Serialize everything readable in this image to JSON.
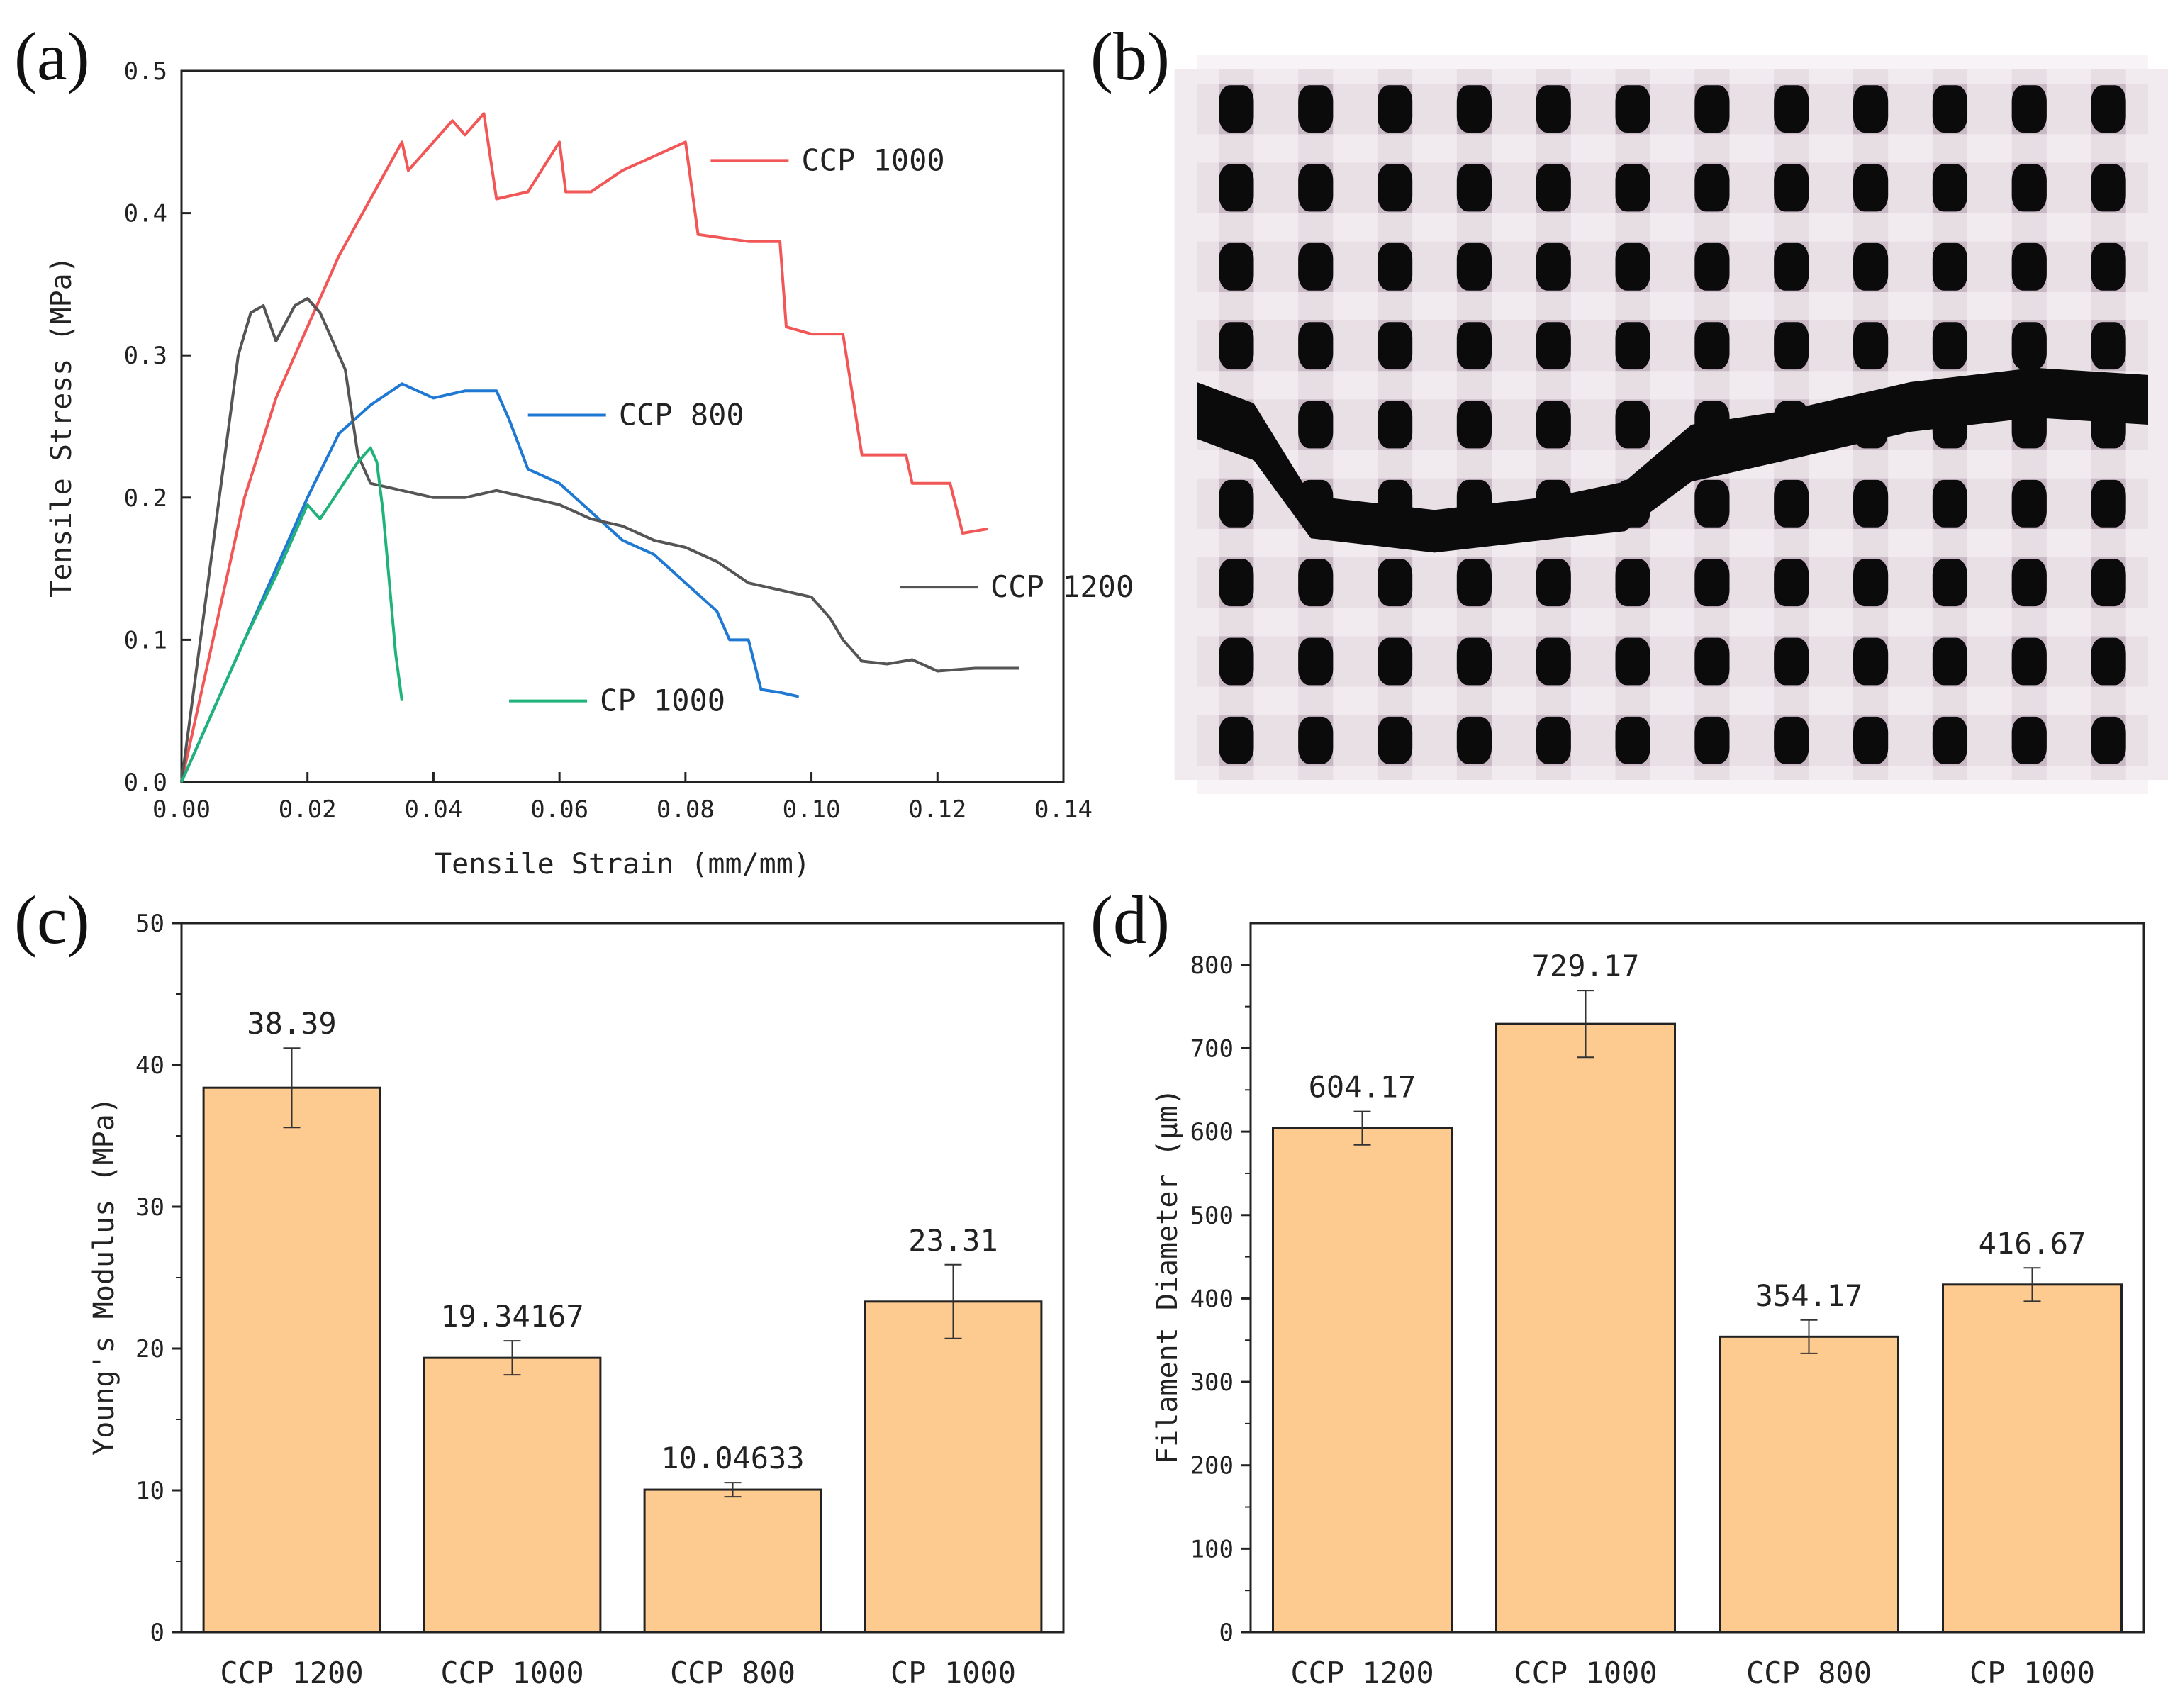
{
  "panels": {
    "a": "(a)",
    "b": "(b)",
    "c": "(c)",
    "d": "(d)"
  },
  "colors": {
    "ccp1000": "#f25757",
    "ccp800": "#1f78d1",
    "ccp1200": "#555555",
    "cp1000": "#1fb37a",
    "bar": "#fdca8f",
    "bar_stroke": "#222222",
    "photo_bg": "#c8b8c4",
    "hole": "#0b0b0b"
  },
  "chart_data": [
    {
      "id": "a",
      "type": "line",
      "xlabel": "Tensile Strain (mm/mm)",
      "ylabel": "Tensile Stress (MPa)",
      "xlim": [
        0,
        0.14
      ],
      "ylim": [
        0,
        0.5
      ],
      "xticks": [
        "0.00",
        "0.02",
        "0.04",
        "0.06",
        "0.08",
        "0.10",
        "0.12",
        "0.14"
      ],
      "yticks": [
        "0.0",
        "0.1",
        "0.2",
        "0.3",
        "0.4",
        "0.5"
      ],
      "series": [
        {
          "name": "CCP 1000",
          "color_key": "ccp1000",
          "legend_at": [
            0.084,
            0.437
          ],
          "points": [
            [
              0,
              0
            ],
            [
              0.005,
              0.1
            ],
            [
              0.01,
              0.2
            ],
            [
              0.015,
              0.27
            ],
            [
              0.02,
              0.32
            ],
            [
              0.025,
              0.37
            ],
            [
              0.03,
              0.41
            ],
            [
              0.035,
              0.45
            ],
            [
              0.036,
              0.43
            ],
            [
              0.04,
              0.45
            ],
            [
              0.043,
              0.465
            ],
            [
              0.045,
              0.455
            ],
            [
              0.047,
              0.465
            ],
            [
              0.048,
              0.47
            ],
            [
              0.049,
              0.44
            ],
            [
              0.05,
              0.41
            ],
            [
              0.055,
              0.415
            ],
            [
              0.06,
              0.45
            ],
            [
              0.061,
              0.415
            ],
            [
              0.065,
              0.415
            ],
            [
              0.07,
              0.43
            ],
            [
              0.075,
              0.44
            ],
            [
              0.08,
              0.45
            ],
            [
              0.082,
              0.385
            ],
            [
              0.09,
              0.38
            ],
            [
              0.095,
              0.38
            ],
            [
              0.096,
              0.32
            ],
            [
              0.1,
              0.315
            ],
            [
              0.105,
              0.315
            ],
            [
              0.108,
              0.23
            ],
            [
              0.11,
              0.23
            ],
            [
              0.115,
              0.23
            ],
            [
              0.116,
              0.21
            ],
            [
              0.12,
              0.21
            ],
            [
              0.122,
              0.21
            ],
            [
              0.124,
              0.175
            ],
            [
              0.128,
              0.178
            ]
          ]
        },
        {
          "name": "CCP 800",
          "color_key": "ccp800",
          "legend_at": [
            0.055,
            0.258
          ],
          "points": [
            [
              0,
              0
            ],
            [
              0.005,
              0.05
            ],
            [
              0.01,
              0.1
            ],
            [
              0.015,
              0.15
            ],
            [
              0.02,
              0.2
            ],
            [
              0.025,
              0.245
            ],
            [
              0.03,
              0.265
            ],
            [
              0.035,
              0.28
            ],
            [
              0.04,
              0.27
            ],
            [
              0.045,
              0.275
            ],
            [
              0.05,
              0.275
            ],
            [
              0.052,
              0.255
            ],
            [
              0.055,
              0.22
            ],
            [
              0.06,
              0.21
            ],
            [
              0.065,
              0.19
            ],
            [
              0.07,
              0.17
            ],
            [
              0.075,
              0.16
            ],
            [
              0.08,
              0.14
            ],
            [
              0.085,
              0.12
            ],
            [
              0.087,
              0.1
            ],
            [
              0.09,
              0.1
            ],
            [
              0.092,
              0.065
            ],
            [
              0.095,
              0.063
            ],
            [
              0.098,
              0.06
            ]
          ]
        },
        {
          "name": "CCP 1200",
          "color_key": "ccp1200",
          "legend_at": [
            0.114,
            0.137
          ],
          "points": [
            [
              0,
              0
            ],
            [
              0.003,
              0.1
            ],
            [
              0.006,
              0.2
            ],
            [
              0.009,
              0.3
            ],
            [
              0.011,
              0.33
            ],
            [
              0.013,
              0.335
            ],
            [
              0.015,
              0.31
            ],
            [
              0.018,
              0.335
            ],
            [
              0.02,
              0.34
            ],
            [
              0.022,
              0.33
            ],
            [
              0.024,
              0.31
            ],
            [
              0.026,
              0.29
            ],
            [
              0.028,
              0.23
            ],
            [
              0.03,
              0.21
            ],
            [
              0.035,
              0.205
            ],
            [
              0.04,
              0.2
            ],
            [
              0.045,
              0.2
            ],
            [
              0.05,
              0.205
            ],
            [
              0.055,
              0.2
            ],
            [
              0.06,
              0.195
            ],
            [
              0.065,
              0.185
            ],
            [
              0.07,
              0.18
            ],
            [
              0.075,
              0.17
            ],
            [
              0.08,
              0.165
            ],
            [
              0.085,
              0.155
            ],
            [
              0.09,
              0.14
            ],
            [
              0.095,
              0.135
            ],
            [
              0.1,
              0.13
            ],
            [
              0.103,
              0.115
            ],
            [
              0.105,
              0.1
            ],
            [
              0.108,
              0.085
            ],
            [
              0.112,
              0.083
            ],
            [
              0.116,
              0.086
            ],
            [
              0.12,
              0.078
            ],
            [
              0.126,
              0.08
            ],
            [
              0.133,
              0.08
            ]
          ]
        },
        {
          "name": "CP 1000",
          "color_key": "cp1000",
          "legend_at": [
            0.052,
            0.057
          ],
          "points": [
            [
              0,
              0
            ],
            [
              0.005,
              0.05
            ],
            [
              0.01,
              0.1
            ],
            [
              0.015,
              0.145
            ],
            [
              0.02,
              0.195
            ],
            [
              0.022,
              0.185
            ],
            [
              0.025,
              0.205
            ],
            [
              0.028,
              0.225
            ],
            [
              0.03,
              0.235
            ],
            [
              0.031,
              0.225
            ],
            [
              0.032,
              0.19
            ],
            [
              0.033,
              0.14
            ],
            [
              0.034,
              0.09
            ],
            [
              0.035,
              0.057
            ]
          ]
        }
      ]
    },
    {
      "id": "c",
      "type": "bar",
      "ylabel": "Young's Modulus (MPa)",
      "ylim": [
        0,
        50
      ],
      "yticks": [
        "0",
        "10",
        "20",
        "30",
        "40",
        "50"
      ],
      "categories": [
        "CCP 1200",
        "CCP 1000",
        "CCP 800",
        "CP 1000"
      ],
      "values": [
        38.39,
        19.34167,
        10.04633,
        23.31
      ],
      "errors": [
        2.8,
        1.2,
        0.5,
        2.6
      ],
      "labels": [
        "38.39",
        "19.34167",
        "10.04633",
        "23.31"
      ]
    },
    {
      "id": "d",
      "type": "bar",
      "ylabel": "Filament Diameter (μm)",
      "ylim": [
        0,
        850
      ],
      "yticks": [
        "0",
        "100",
        "200",
        "300",
        "400",
        "500",
        "600",
        "700",
        "800"
      ],
      "categories": [
        "CCP 1200",
        "CCP 1000",
        "CCP 800",
        "CP 1000"
      ],
      "values": [
        604.17,
        729.17,
        354.17,
        416.67
      ],
      "errors": [
        20,
        40,
        20,
        20
      ],
      "labels": [
        "604.17",
        "729.17",
        "354.17",
        "416.67"
      ]
    }
  ]
}
